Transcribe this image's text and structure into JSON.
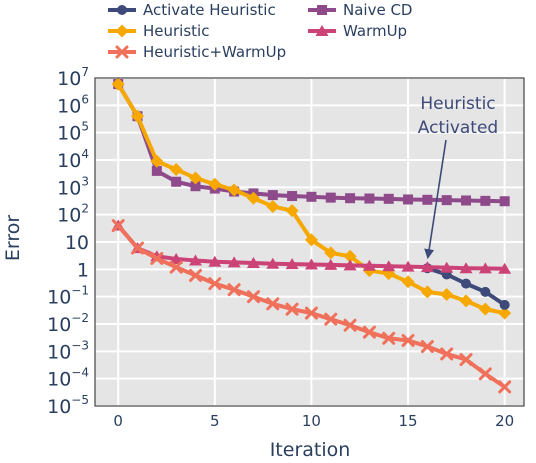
{
  "chart_data": {
    "type": "line",
    "xlabel": "Iteration",
    "ylabel": "Error",
    "y_scale": "log",
    "xlim": [
      -1.2,
      21
    ],
    "ylim": [
      1e-05,
      10000000.0
    ],
    "grid": true,
    "plot_background": "#e5e5e5",
    "x_ticks": [
      0,
      5,
      10,
      15,
      20
    ],
    "x_tick_labels": [
      "0",
      "5",
      "10",
      "15",
      "20"
    ],
    "y_ticks": [
      {
        "value": 10000000.0,
        "base": "10",
        "exp": "7"
      },
      {
        "value": 1000000.0,
        "base": "10",
        "exp": "6"
      },
      {
        "value": 100000.0,
        "base": "10",
        "exp": "5"
      },
      {
        "value": 10000.0,
        "base": "10",
        "exp": "4"
      },
      {
        "value": 1000.0,
        "base": "10",
        "exp": "3"
      },
      {
        "value": 100.0,
        "base": "10",
        "exp": "2"
      },
      {
        "value": 10,
        "base": "10",
        "exp": ""
      },
      {
        "value": 1,
        "base": "1",
        "exp": ""
      },
      {
        "value": 0.1,
        "base": "10",
        "exp": "−1"
      },
      {
        "value": 0.01,
        "base": "10",
        "exp": "−2"
      },
      {
        "value": 0.001,
        "base": "10",
        "exp": "−3"
      },
      {
        "value": 0.0001,
        "base": "10",
        "exp": "−4"
      },
      {
        "value": 1e-05,
        "base": "10",
        "exp": "−5"
      }
    ],
    "legend_position": "top",
    "series": [
      {
        "name": "Naive CD",
        "color": "#8e4a8a",
        "marker": "square",
        "x": [
          0,
          1,
          2,
          3,
          4,
          5,
          6,
          7,
          8,
          9,
          10,
          11,
          12,
          13,
          14,
          15,
          16,
          17,
          18,
          19,
          20
        ],
        "y": [
          6000000,
          400000,
          4000,
          1600,
          1100,
          900,
          700,
          600,
          520,
          480,
          450,
          420,
          400,
          390,
          380,
          360,
          350,
          340,
          330,
          320,
          310
        ]
      },
      {
        "name": "Heuristic",
        "color": "#f6a800",
        "marker": "diamond",
        "x": [
          0,
          1,
          2,
          3,
          4,
          5,
          6,
          7,
          8,
          9,
          10,
          11,
          12,
          13,
          14,
          15,
          16,
          17,
          18,
          19,
          20
        ],
        "y": [
          6000000,
          400000,
          9000,
          4500,
          2200,
          1300,
          800,
          400,
          200,
          140,
          12,
          4,
          3,
          0.9,
          0.7,
          0.35,
          0.15,
          0.12,
          0.07,
          0.035,
          0.025
        ]
      },
      {
        "name": "Activate Heuristic",
        "color": "#3d4a7a",
        "marker": "circle",
        "x": [
          16,
          17,
          18,
          19,
          20
        ],
        "y": [
          1.1,
          0.65,
          0.3,
          0.15,
          0.05
        ]
      },
      {
        "name": "WarmUp",
        "color": "#cc4477",
        "marker": "triangle",
        "x": [
          0,
          1,
          2,
          3,
          4,
          5,
          6,
          7,
          8,
          9,
          10,
          11,
          12,
          13,
          14,
          15,
          16,
          17,
          18,
          19,
          20
        ],
        "y": [
          40,
          6,
          3,
          2.4,
          2.1,
          1.9,
          1.8,
          1.7,
          1.6,
          1.55,
          1.5,
          1.45,
          1.4,
          1.35,
          1.3,
          1.25,
          1.2,
          1.15,
          1.1,
          1.08,
          1.05
        ]
      },
      {
        "name": "Heuristic+WarmUp",
        "color": "#f0715b",
        "marker": "x",
        "x": [
          0,
          1,
          2,
          3,
          4,
          5,
          6,
          7,
          8,
          9,
          10,
          11,
          12,
          13,
          14,
          15,
          16,
          17,
          18,
          19,
          20
        ],
        "y": [
          40,
          6,
          2.5,
          1.2,
          0.6,
          0.3,
          0.18,
          0.1,
          0.055,
          0.035,
          0.025,
          0.015,
          0.009,
          0.005,
          0.003,
          0.0025,
          0.0015,
          0.0008,
          0.0005,
          0.00015,
          5e-05
        ]
      }
    ],
    "legend": [
      {
        "name": "Activate Heuristic",
        "color": "#3d4a7a",
        "marker": "circle"
      },
      {
        "name": "Naive CD",
        "color": "#8e4a8a",
        "marker": "square"
      },
      {
        "name": "Heuristic",
        "color": "#f6a800",
        "marker": "diamond"
      },
      {
        "name": "WarmUp",
        "color": "#cc4477",
        "marker": "triangle"
      },
      {
        "name": "Heuristic+WarmUp",
        "color": "#f0715b",
        "marker": "x"
      }
    ],
    "annotations": [
      {
        "lines": [
          "Heuristic",
          "Activated"
        ],
        "arrow_to": {
          "x": 16,
          "y": 1.1
        },
        "color": "#3d4a7a"
      }
    ]
  }
}
